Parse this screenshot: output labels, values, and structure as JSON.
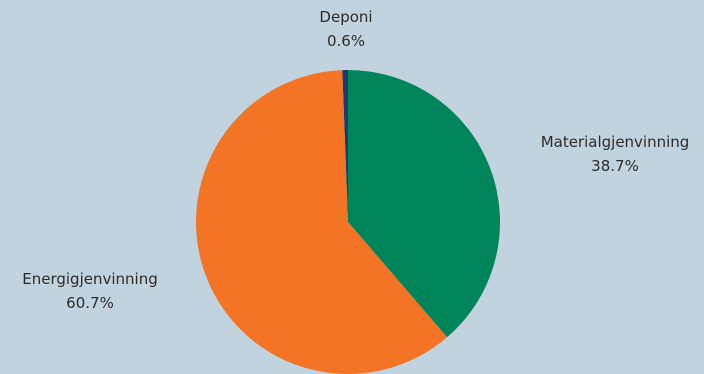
{
  "colors": {
    "background": "#c2d3e0"
  },
  "chart_data": {
    "type": "pie",
    "title": "",
    "slices": [
      {
        "label": "Materialgjenvinning",
        "value": 38.7,
        "display": "38.7%",
        "color": "#00855a"
      },
      {
        "label": "Energigjenvinning",
        "value": 60.7,
        "display": "60.7%",
        "color": "#f37425"
      },
      {
        "label": "Deponi",
        "value": 0.6,
        "display": "0.6%",
        "color": "#1a3b6e"
      }
    ]
  }
}
